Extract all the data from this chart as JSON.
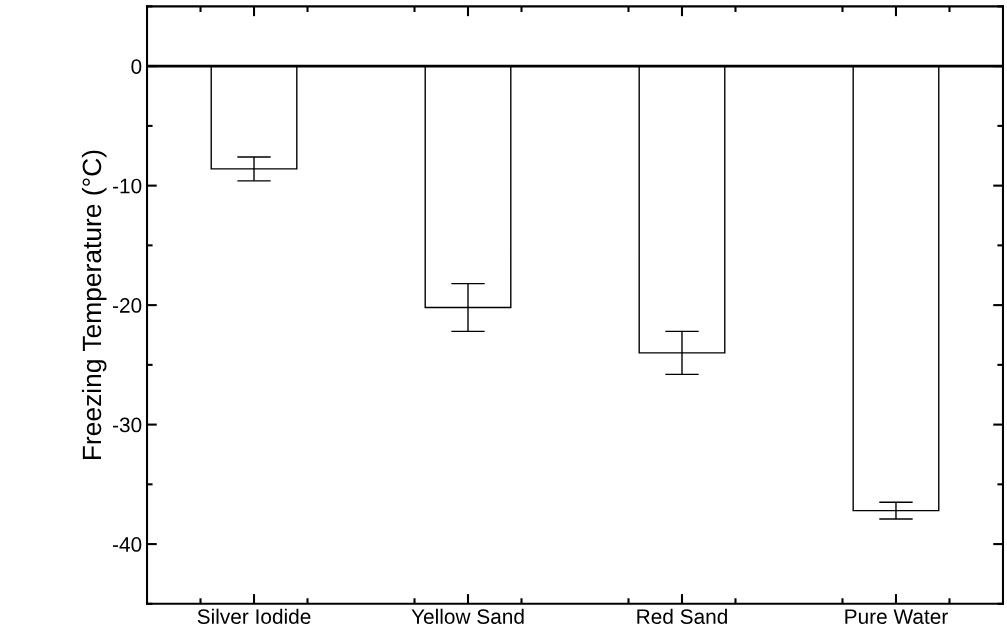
{
  "chart_data": {
    "type": "bar",
    "ylabel": "Freezing Temperature (°C)",
    "categories": [
      "Silver Iodide",
      "Yellow Sand",
      "Red Sand",
      "Pure Water"
    ],
    "values": [
      -8.6,
      -20.2,
      -24.0,
      -37.2
    ],
    "errors": [
      1.0,
      2.0,
      1.8,
      0.7
    ],
    "color": "#ffffff",
    "ylim": [
      -45,
      5
    ],
    "yticks": [
      {
        "value": 5,
        "label": null
      },
      0,
      {
        "value": -5,
        "label": null
      },
      -10,
      {
        "value": -15,
        "label": null
      },
      -20,
      {
        "value": -25,
        "label": null
      },
      -30,
      {
        "value": -35,
        "label": null
      },
      -40,
      {
        "value": -45,
        "label": null
      }
    ],
    "ref_lines": [
      {
        "axis": "y",
        "value": 0,
        "label": null,
        "color": "#000000"
      }
    ],
    "grid": false,
    "legend": false
  }
}
